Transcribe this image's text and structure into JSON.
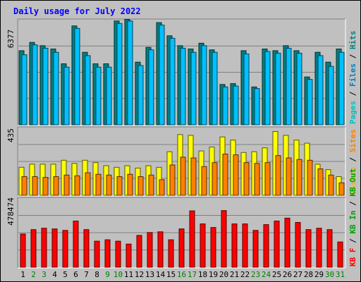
{
  "chart_data": [
    {
      "type": "bar",
      "title": "Daily usage for July 2022",
      "categories": [
        "1",
        "2",
        "3",
        "4",
        "5",
        "6",
        "7",
        "8",
        "9",
        "10",
        "11",
        "12",
        "13",
        "14",
        "15",
        "16",
        "17",
        "18",
        "19",
        "20",
        "21",
        "22",
        "23",
        "24",
        "25",
        "26",
        "27",
        "28",
        "29",
        "30",
        "31"
      ],
      "weekend_categories": [
        "2",
        "3",
        "9",
        "10",
        "16",
        "17",
        "23",
        "24",
        "30",
        "31"
      ],
      "ymax_label": "6377",
      "ylim": [
        0,
        6377
      ],
      "legend": [
        "Pages",
        "/",
        "Files",
        "/",
        "Hits"
      ],
      "series": [
        {
          "name": "Hits",
          "color": "#008080",
          "values": [
            4500,
            5000,
            4800,
            4600,
            3700,
            6000,
            4400,
            3700,
            3700,
            6300,
            6400,
            3800,
            4700,
            6200,
            5400,
            4800,
            4600,
            4950,
            4550,
            2450,
            2500,
            4500,
            2300,
            4600,
            4500,
            4800,
            4500,
            2900,
            4400,
            3800,
            4600
          ]
        },
        {
          "name": "Files",
          "color": "#00c0ff",
          "values": [
            4250,
            4850,
            4650,
            4400,
            3500,
            5850,
            4200,
            3500,
            3500,
            6150,
            6300,
            3600,
            4550,
            6050,
            5250,
            4650,
            4400,
            4800,
            4400,
            2300,
            2350,
            4300,
            2200,
            4450,
            4350,
            4650,
            4350,
            2750,
            4200,
            3550,
            4400
          ]
        }
      ]
    },
    {
      "type": "bar",
      "ymax_label": "435",
      "ylim": [
        0,
        435
      ],
      "legend": [
        "Visits",
        "/",
        "Sites"
      ],
      "series": [
        {
          "name": "Visits",
          "color": "#ffff00",
          "values": [
            180,
            200,
            200,
            200,
            225,
            205,
            225,
            210,
            190,
            180,
            190,
            175,
            190,
            180,
            280,
            390,
            385,
            285,
            310,
            375,
            355,
            275,
            280,
            305,
            410,
            385,
            355,
            335,
            200,
            165,
            120
          ]
        },
        {
          "name": "Sites",
          "color": "#ff8000",
          "values": [
            120,
            120,
            115,
            120,
            130,
            125,
            145,
            135,
            130,
            120,
            135,
            120,
            130,
            100,
            195,
            245,
            240,
            185,
            210,
            265,
            260,
            210,
            205,
            210,
            255,
            240,
            230,
            225,
            170,
            130,
            80
          ]
        }
      ]
    },
    {
      "type": "bar",
      "ymax_label": "478474",
      "ylim": [
        0,
        478474
      ],
      "legend": [
        "KB F",
        "/",
        "KB In",
        "/",
        "KB Out"
      ],
      "series": [
        {
          "name": "KB F",
          "color": "#ff0000",
          "values": [
            230000,
            260000,
            270000,
            265000,
            255000,
            320000,
            260000,
            180000,
            190000,
            180000,
            160000,
            220000,
            240000,
            245000,
            190000,
            265000,
            390000,
            300000,
            275000,
            392000,
            300000,
            300000,
            255000,
            295000,
            320000,
            340000,
            310000,
            260000,
            270000,
            260000,
            175000
          ]
        }
      ]
    }
  ]
}
